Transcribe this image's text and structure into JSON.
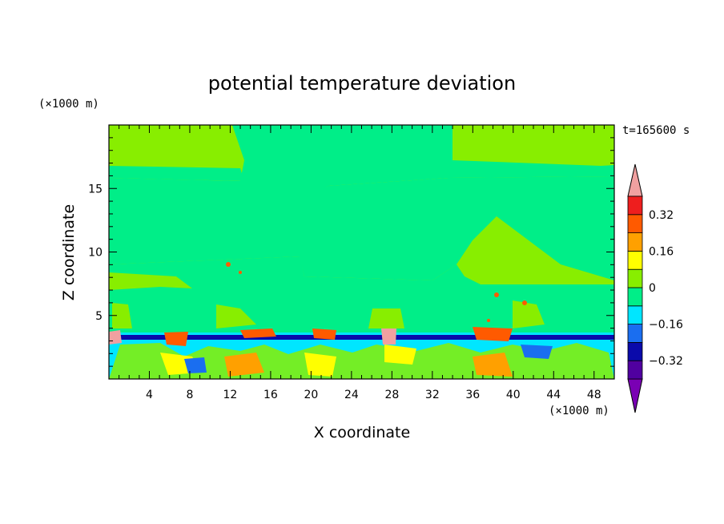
{
  "chart_data": {
    "type": "heatmap",
    "title": "potential temperature deviation",
    "xlabel": "X coordinate",
    "ylabel": "Z coordinate",
    "x_unit": "(×1000 m)",
    "y_unit": "(×1000 m)",
    "time_label": "t=165600 s",
    "xlim": [
      0,
      50
    ],
    "ylim": [
      0,
      20
    ],
    "x_ticks": [
      4,
      8,
      12,
      16,
      20,
      24,
      28,
      32,
      36,
      40,
      44,
      48
    ],
    "y_ticks": [
      5,
      10,
      15
    ],
    "colorbar": {
      "levels": [
        -0.4,
        -0.32,
        -0.24,
        -0.16,
        -0.08,
        0,
        0.08,
        0.16,
        0.24,
        0.32,
        0.4
      ],
      "labels": [
        "0.32",
        "0.16",
        "0",
        "−0.16",
        "−0.32"
      ],
      "label_values": [
        0.32,
        0.16,
        0,
        -0.16,
        -0.32
      ],
      "colors": [
        "#7a00b4",
        "#5000a0",
        "#0a0aaa",
        "#1a6ef0",
        "#00e6ff",
        "#00ee88",
        "#88ee00",
        "#ffff00",
        "#ffa000",
        "#ff5a00",
        "#ee1e1e",
        "#f0a0a0"
      ]
    },
    "colors": {
      "background": "#88ee00",
      "neutral_fill": "#00ee88",
      "boundary_layer": "#1a6ef0",
      "inversion_line": "#0a0aaa",
      "warm_blob": "#ffa000",
      "hot_blob": "#ff5a00",
      "extreme_blob": "#f0a0a0"
    }
  }
}
